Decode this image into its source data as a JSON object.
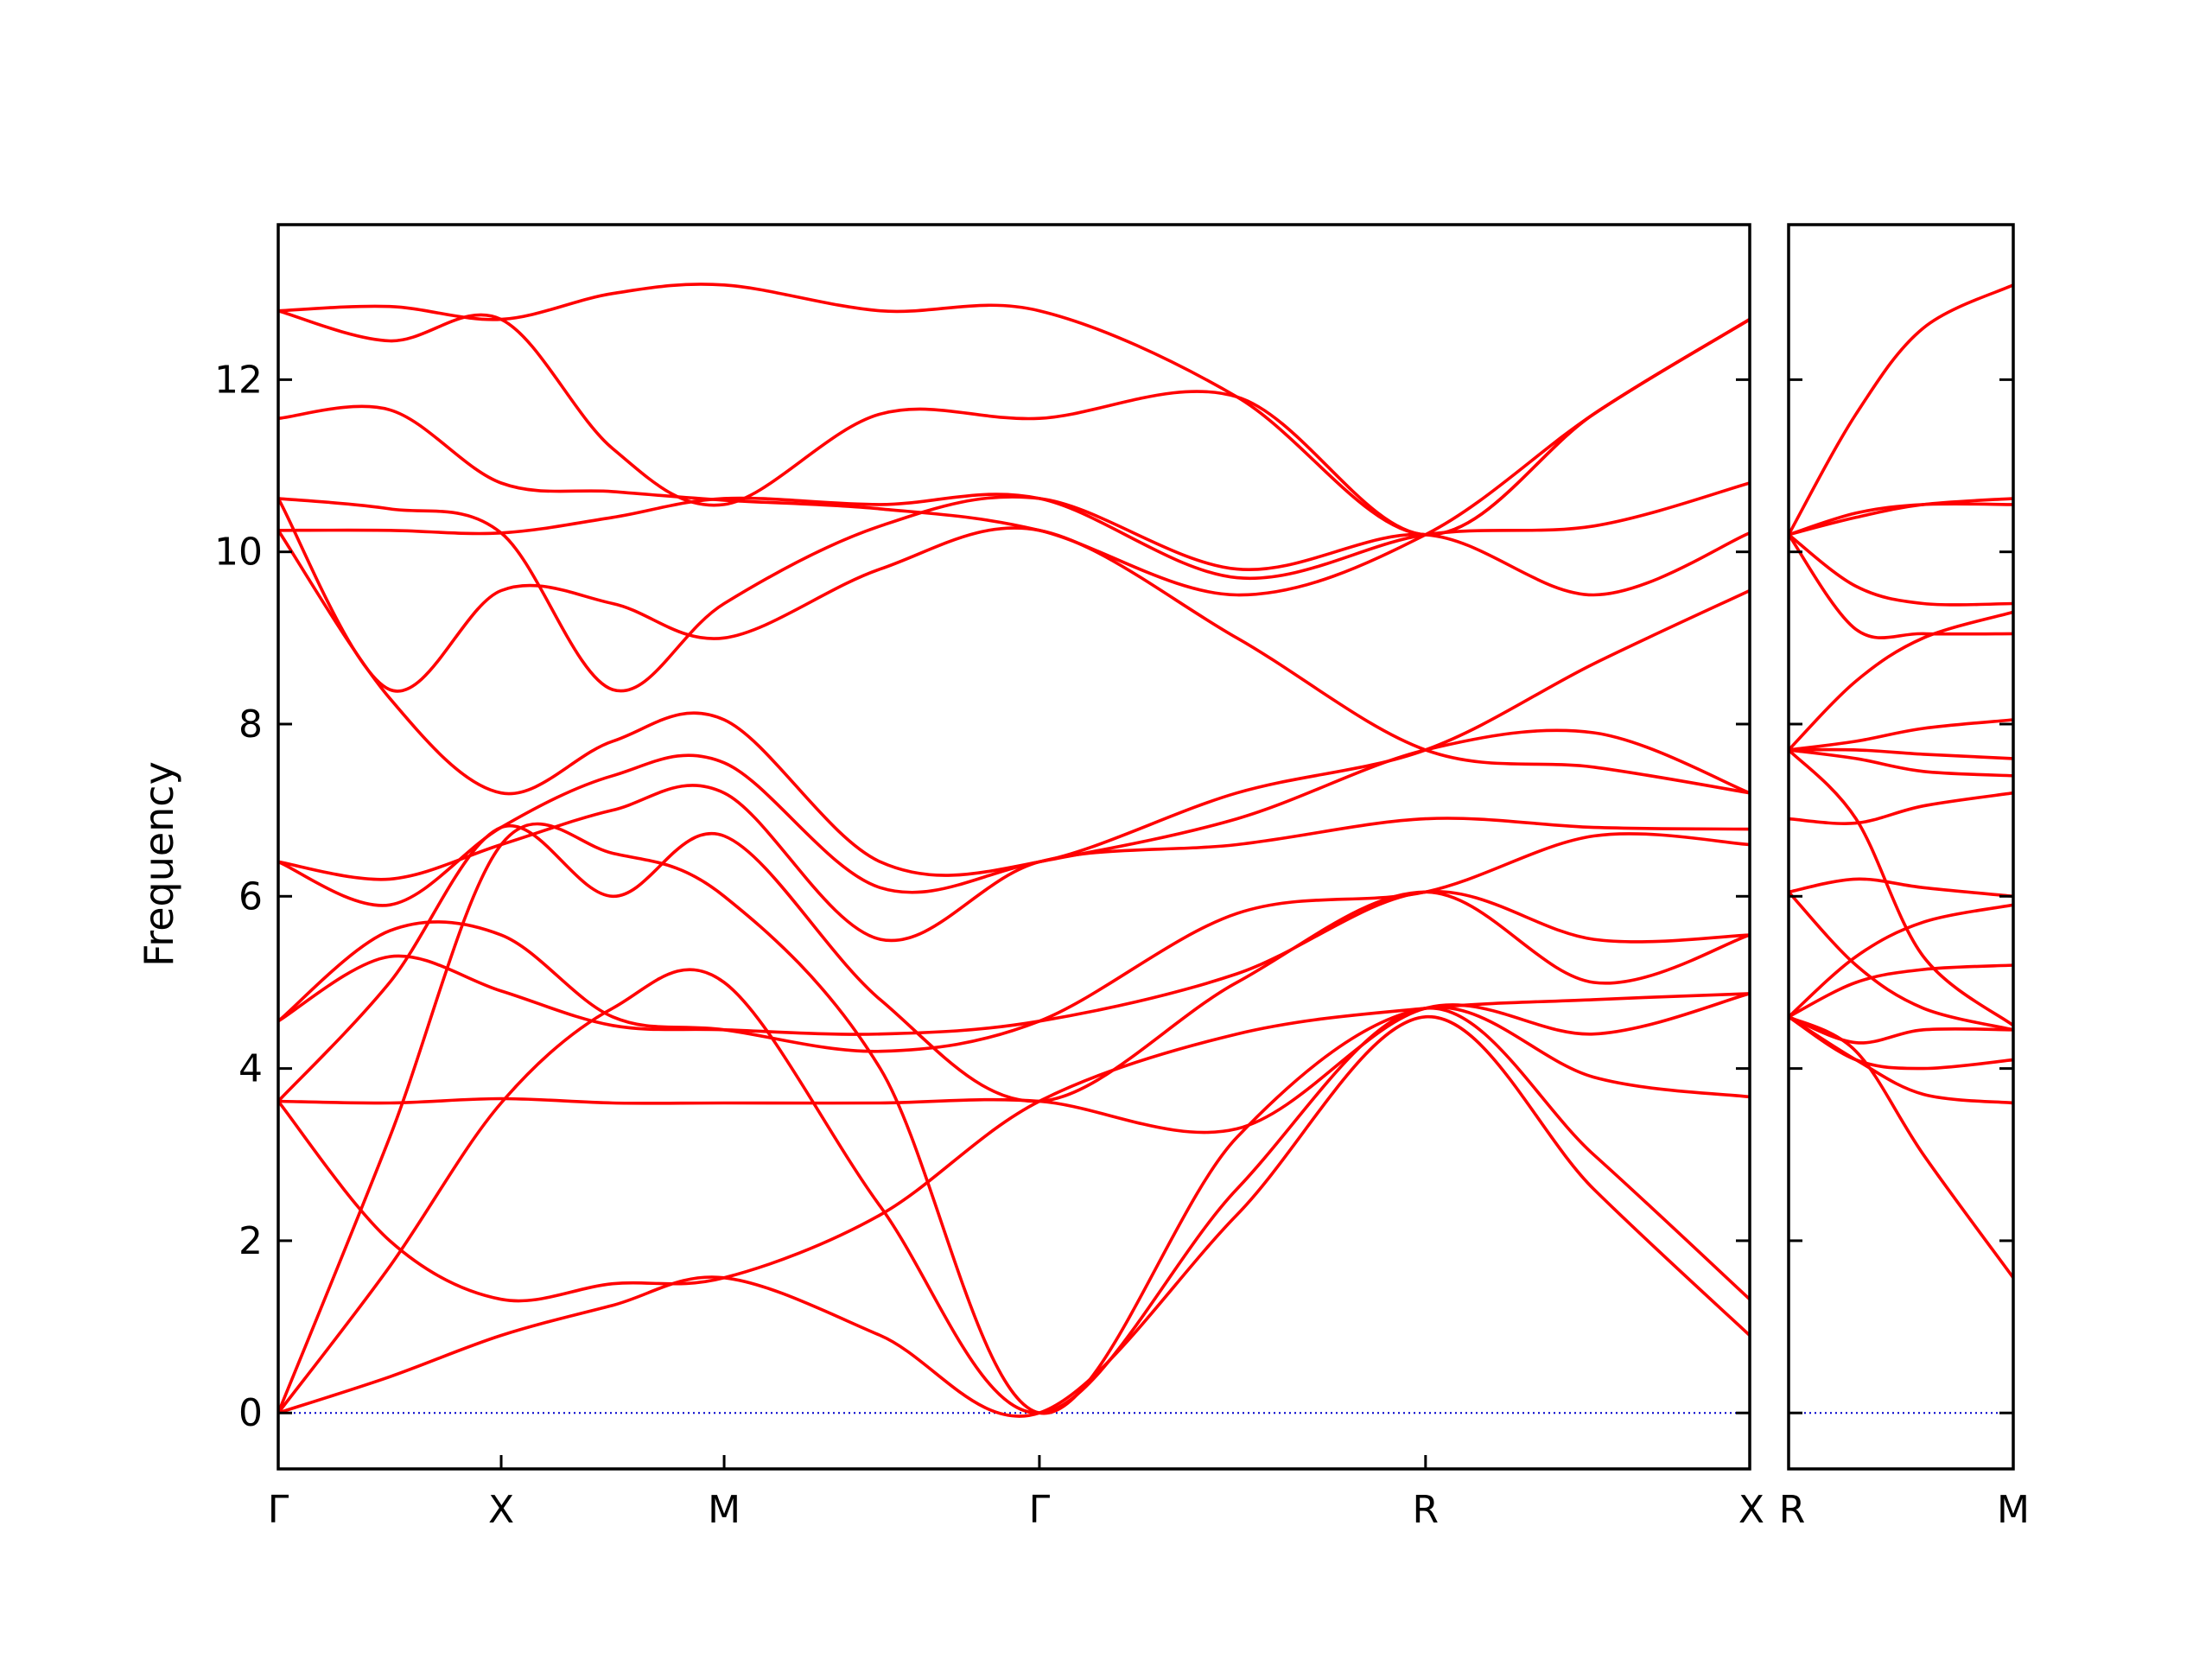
{
  "chart_data": {
    "type": "line",
    "ylabel": "Frequency",
    "ylim": [
      -0.65,
      13.8
    ],
    "yticks": [
      0,
      2,
      4,
      6,
      8,
      10,
      12
    ],
    "colors": {
      "bands": "#ff0000",
      "zero_line": "#0000cc",
      "frame": "#000000"
    },
    "segments": [
      {
        "xlim": [
          0,
          6.6
        ],
        "ticks": [
          {
            "x": 0,
            "label": "Γ"
          },
          {
            "x": 1,
            "label": "X"
          },
          {
            "x": 2,
            "label": "M"
          },
          {
            "x": 3.414,
            "label": "Γ"
          },
          {
            "x": 5.146,
            "label": "R"
          },
          {
            "x": 6.6,
            "label": "X"
          }
        ],
        "bands": [
          {
            "x": [
              0,
              0.5,
              1,
              1.5,
              2,
              2.7,
              3.414,
              4.3,
              5.146,
              5.9,
              6.6
            ],
            "y": [
              0,
              0.42,
              0.9,
              1.25,
              1.57,
              0.9,
              0,
              2.3,
              4.6,
              2.6,
              0.9
            ]
          },
          {
            "x": [
              0,
              0.5,
              1,
              1.5,
              2,
              2.7,
              3.414,
              4.3,
              5.146,
              5.9,
              6.6
            ],
            "y": [
              0,
              1.7,
              3.6,
              4.7,
              5.0,
              2.4,
              0,
              2.6,
              4.7,
              3.0,
              1.32
            ]
          },
          {
            "x": [
              0,
              0.5,
              1,
              1.5,
              2,
              2.7,
              3.414,
              4.3,
              5.146,
              5.9,
              6.6
            ],
            "y": [
              0,
              3.2,
              6.6,
              6.5,
              6.0,
              4.0,
              0,
              3.2,
              4.7,
              3.9,
              3.67
            ]
          },
          {
            "x": [
              0,
              0.5,
              1,
              1.5,
              2,
              2.7,
              3.414,
              4.3,
              5.146,
              5.9,
              6.6
            ],
            "y": [
              3.62,
              2.0,
              1.32,
              1.5,
              1.57,
              2.3,
              3.62,
              4.4,
              4.7,
              4.8,
              4.87
            ]
          },
          {
            "x": [
              0,
              0.5,
              1,
              1.5,
              2,
              2.7,
              3.414,
              4.3,
              5.146,
              5.9,
              6.6
            ],
            "y": [
              3.62,
              3.6,
              3.65,
              3.6,
              3.6,
              3.6,
              3.62,
              3.3,
              4.7,
              4.4,
              4.87
            ]
          },
          {
            "x": [
              0,
              0.5,
              1,
              1.5,
              2,
              2.7,
              3.414,
              4.3,
              5.146,
              5.9,
              6.6
            ],
            "y": [
              3.62,
              5.0,
              6.8,
              6.0,
              6.7,
              4.8,
              3.62,
              5.0,
              6.05,
              5.0,
              5.55
            ]
          },
          {
            "x": [
              0,
              0.5,
              1,
              1.5,
              2,
              2.7,
              3.414,
              4.3,
              5.146,
              5.9,
              6.6
            ],
            "y": [
              4.55,
              5.3,
              4.9,
              4.5,
              4.45,
              4.4,
              4.55,
              5.1,
              6.05,
              5.5,
              5.55
            ]
          },
          {
            "x": [
              0,
              0.5,
              1,
              1.5,
              2,
              2.7,
              3.414,
              4.3,
              5.146,
              5.9,
              6.6
            ],
            "y": [
              4.55,
              5.6,
              5.55,
              4.6,
              4.45,
              4.2,
              4.55,
              5.8,
              6.05,
              6.7,
              6.6
            ]
          },
          {
            "x": [
              0,
              0.5,
              1,
              1.5,
              2,
              2.7,
              3.414,
              4.3,
              5.146,
              5.9,
              6.6
            ],
            "y": [
              6.4,
              6.2,
              6.6,
              7.0,
              7.2,
              5.5,
              6.4,
              6.6,
              6.9,
              6.8,
              6.78
            ]
          },
          {
            "x": [
              0,
              0.5,
              1,
              1.5,
              2,
              2.7,
              3.414,
              4.3,
              5.146,
              5.9,
              6.6
            ],
            "y": [
              6.4,
              5.9,
              6.8,
              7.4,
              7.55,
              6.1,
              6.4,
              6.9,
              7.7,
              7.9,
              7.2
            ]
          },
          {
            "x": [
              0,
              0.5,
              1,
              1.5,
              2,
              2.7,
              3.414,
              4.3,
              5.146,
              5.9,
              6.6
            ],
            "y": [
              10.25,
              8.3,
              7.2,
              7.8,
              8.05,
              6.4,
              6.4,
              7.2,
              7.7,
              8.7,
              9.55
            ]
          },
          {
            "x": [
              0,
              0.5,
              1,
              1.5,
              2,
              2.7,
              3.414,
              4.3,
              5.146,
              5.9,
              6.6
            ],
            "y": [
              10.62,
              8.4,
              9.55,
              9.4,
              9.0,
              9.8,
              10.25,
              9.0,
              7.7,
              7.5,
              7.2
            ]
          },
          {
            "x": [
              0,
              0.5,
              1,
              1.5,
              2,
              2.7,
              3.414,
              4.3,
              5.146,
              5.9,
              6.6
            ],
            "y": [
              10.62,
              10.5,
              10.22,
              8.4,
              9.4,
              10.3,
              10.62,
              9.8,
              10.2,
              9.5,
              10.22
            ]
          },
          {
            "x": [
              0,
              0.5,
              1,
              1.5,
              2,
              2.7,
              3.414,
              4.3,
              5.146,
              5.9,
              6.6
            ],
            "y": [
              10.25,
              10.25,
              10.22,
              10.4,
              10.62,
              10.55,
              10.62,
              9.7,
              10.2,
              10.3,
              10.8
            ]
          },
          {
            "x": [
              0,
              0.5,
              1,
              1.5,
              2,
              2.7,
              3.414,
              4.3,
              5.146,
              5.9,
              6.6
            ],
            "y": [
              11.55,
              11.65,
              10.8,
              10.7,
              10.6,
              10.5,
              10.25,
              9.5,
              10.2,
              11.6,
              12.7
            ]
          },
          {
            "x": [
              0,
              0.5,
              1,
              1.5,
              2,
              2.7,
              3.414,
              4.3,
              5.146,
              5.9,
              6.6
            ],
            "y": [
              12.8,
              12.45,
              12.7,
              11.2,
              10.55,
              11.6,
              11.55,
              11.8,
              10.2,
              11.6,
              12.7
            ]
          },
          {
            "x": [
              0,
              0.5,
              1,
              1.5,
              2,
              2.7,
              3.414,
              4.3,
              5.146,
              5.9,
              6.6
            ],
            "y": [
              12.8,
              12.85,
              12.7,
              13.0,
              13.1,
              12.8,
              12.8,
              11.8,
              10.2,
              11.6,
              12.7
            ]
          }
        ]
      },
      {
        "xlim": [
          0,
          1
        ],
        "ticks": [
          {
            "x": 0,
            "label": "R"
          },
          {
            "x": 1,
            "label": "M"
          }
        ],
        "bands": [
          {
            "x": [
              0,
              0.3,
              0.6,
              1
            ],
            "y": [
              4.6,
              4.2,
              3.0,
              1.57
            ]
          },
          {
            "x": [
              0,
              0.3,
              0.6,
              1
            ],
            "y": [
              4.6,
              4.1,
              3.7,
              3.6
            ]
          },
          {
            "x": [
              0,
              0.3,
              0.6,
              1
            ],
            "y": [
              4.6,
              4.1,
              4.0,
              4.1
            ]
          },
          {
            "x": [
              0,
              0.3,
              0.6,
              1
            ],
            "y": [
              4.6,
              4.3,
              4.45,
              4.45
            ]
          },
          {
            "x": [
              0,
              0.3,
              0.6,
              1
            ],
            "y": [
              4.6,
              5.0,
              5.15,
              5.2
            ]
          },
          {
            "x": [
              0,
              0.3,
              0.6,
              1
            ],
            "y": [
              4.6,
              5.3,
              5.7,
              5.9
            ]
          },
          {
            "x": [
              0,
              0.3,
              0.6,
              1
            ],
            "y": [
              6.05,
              5.2,
              4.7,
              4.45
            ]
          },
          {
            "x": [
              0,
              0.3,
              0.6,
              1
            ],
            "y": [
              6.05,
              6.2,
              6.1,
              6.0
            ]
          },
          {
            "x": [
              0,
              0.3,
              0.6,
              1
            ],
            "y": [
              6.9,
              6.85,
              7.05,
              7.2
            ]
          },
          {
            "x": [
              0,
              0.3,
              0.6,
              1
            ],
            "y": [
              7.7,
              6.9,
              5.3,
              4.5
            ]
          },
          {
            "x": [
              0,
              0.3,
              0.6,
              1
            ],
            "y": [
              7.7,
              7.6,
              7.45,
              7.4
            ]
          },
          {
            "x": [
              0,
              0.3,
              0.6,
              1
            ],
            "y": [
              7.7,
              7.7,
              7.65,
              7.6
            ]
          },
          {
            "x": [
              0,
              0.3,
              0.6,
              1
            ],
            "y": [
              7.7,
              7.8,
              7.95,
              8.05
            ]
          },
          {
            "x": [
              0,
              0.3,
              0.6,
              1
            ],
            "y": [
              7.7,
              8.5,
              9.0,
              9.3
            ]
          },
          {
            "x": [
              0,
              0.3,
              0.6,
              1
            ],
            "y": [
              10.2,
              9.1,
              9.05,
              9.05
            ]
          },
          {
            "x": [
              0,
              0.3,
              0.6,
              1
            ],
            "y": [
              10.2,
              9.6,
              9.4,
              9.4
            ]
          },
          {
            "x": [
              0,
              0.3,
              0.6,
              1
            ],
            "y": [
              10.2,
              10.45,
              10.55,
              10.55
            ]
          },
          {
            "x": [
              0,
              0.3,
              0.6,
              1
            ],
            "y": [
              10.2,
              10.4,
              10.55,
              10.62
            ]
          },
          {
            "x": [
              0,
              0.3,
              0.6,
              1
            ],
            "y": [
              10.2,
              11.6,
              12.6,
              13.1
            ]
          }
        ]
      }
    ]
  }
}
